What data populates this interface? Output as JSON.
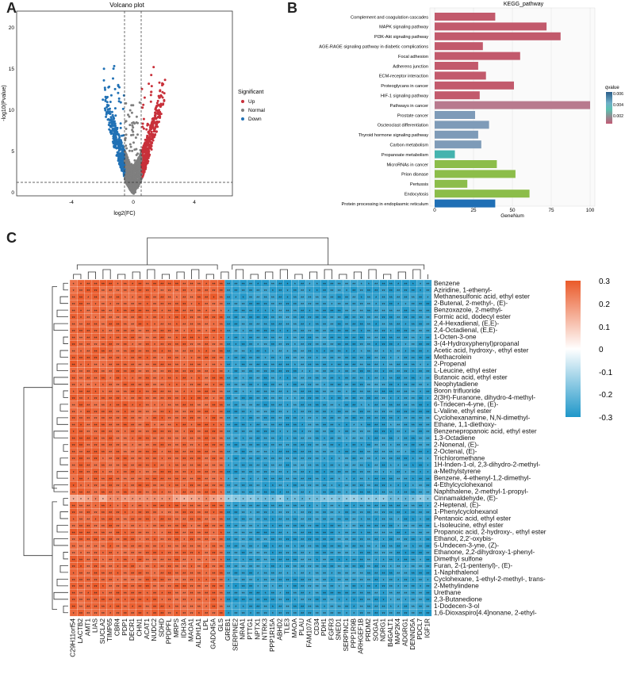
{
  "panels": {
    "a": "A",
    "b": "B",
    "c": "C"
  },
  "volcano": {
    "title": "Volcano plot",
    "xlabel": "log2(FC)",
    "ylabel": "-log10(Pvalue)",
    "xticks": [
      "-4",
      "0",
      "4"
    ],
    "yticks": [
      "0",
      "5",
      "10",
      "15",
      "20"
    ],
    "legend_title": "Significant",
    "legend": [
      {
        "label": "Up",
        "color": "#c8303a"
      },
      {
        "label": "Normal",
        "color": "#7f7f7f"
      },
      {
        "label": "Down",
        "color": "#2171b5"
      }
    ]
  },
  "kegg": {
    "title": "KEGG_pathway",
    "xlabel": "GeneNum",
    "xticks": [
      "0",
      "25",
      "50",
      "75",
      "100"
    ],
    "legend_title": "qvalue",
    "legend_ticks": [
      "0.006",
      "0.004",
      "0.002"
    ]
  },
  "heatmap": {
    "scale_ticks": [
      "0.3",
      "0.2",
      "0.1",
      "0",
      "-0.1",
      "-0.2",
      "-0.3"
    ],
    "rows": [
      "Benzene",
      "Aziridine, 1-ethenyl-",
      "Methanesulfonic acid, ethyl ester",
      "2-Butenal, 2-methyl-, (E)-",
      "Benzoxazole, 2-methyl-",
      "Formic acid, dodecyl ester",
      "2,4-Hexadienal, (E,E)-",
      "2,4-Octadienal, (E,E)-",
      "1-Octen-3-one",
      "3-(4-Hydroxyphenyl)propanal",
      "Acetic acid, hydroxy-, ethyl ester",
      "Methacrolein",
      "2-Propenal",
      "L-Leucine, ethyl ester",
      "Butanoic acid, ethyl ester",
      "Neophytadiene",
      "Boron trifluoride",
      "2(3H)-Furanone, dihydro-4-methyl-",
      "6-Tridecen-4-yne, (E)-",
      "L-Valine, ethyl ester",
      "Cyclohexanamine, N,N-dimethyl-",
      "Ethane, 1,1-diethoxy-",
      "Benzenepropanoic acid, ethyl ester",
      "1,3-Octadiene",
      "2-Nonenal, (E)-",
      "2-Octenal, (E)-",
      "Trichloromethane",
      "1H-Inden-1-ol, 2,3-dihydro-2-methyl-",
      "a-Methylstyrene",
      "Benzene, 4-ethenyl-1,2-dimethyl-",
      "4-Ethylcyclohexanol",
      "Naphthalene, 2-methyl-1-propyl-",
      "Cinnamaldehyde, (E)-",
      "2-Heptenal, (E)-",
      "1-Phenylcyclohexanol",
      "Pentanoic acid, ethyl ester",
      "L-Isoleucine, ethyl ester",
      "Propanoic acid, 2-hydroxy-, ethyl ester",
      "Ethanol, 2,2'-oxybis-",
      "5-Undecen-3-yne, (Z)-",
      "Ethanone, 2,2-dihydroxy-1-phenyl-",
      "Dimethyl sulfone",
      "Furan, 2-(1-pentenyl)-, (E)-",
      "1-Naphthalenol",
      "Cyclohexane, 1-ethyl-2-methyl-, trans-",
      "2-Methylindene",
      "Urethane",
      "2,3-Butanedione",
      "1-Dodecen-3-ol",
      "1,6-Dioxaspiro[4.4]nonane, 2-ethyl-"
    ],
    "cols": [
      "C29H11orf54",
      "LACTB2",
      "AMT1",
      "LIAS",
      "SUCLA2",
      "TIMP65",
      "CBR4",
      "PDP1",
      "DECR1",
      "CHN1",
      "ACAT1",
      "NUDC2",
      "SDHD",
      "PPDPFL",
      "MRPS",
      "IDH3A",
      "MAOA1",
      "ALDH1A1",
      "LPL",
      "GADD45A",
      "GLS",
      "GREB1",
      "SERPINE2",
      "NR4A1",
      "PTTG1",
      "NPTX1",
      "NTRK3",
      "PPP1R15A",
      "ABHD2",
      "TLE3",
      "MAOA",
      "PLAU",
      "FAM107A",
      "CD34",
      "PDH1",
      "FGFR3",
      "SNED1",
      "SERPINC1",
      "PPP1R9B",
      "ARHGEF1B",
      "PRDM2",
      "SOGA1",
      "NDRG1",
      "B4GALT1",
      "MAP2K4",
      "ADGRG1",
      "DENND5A",
      "PDCL7",
      "IGF1R"
    ],
    "hot_col_count": 21,
    "bright_row_index": 32
  }
}
